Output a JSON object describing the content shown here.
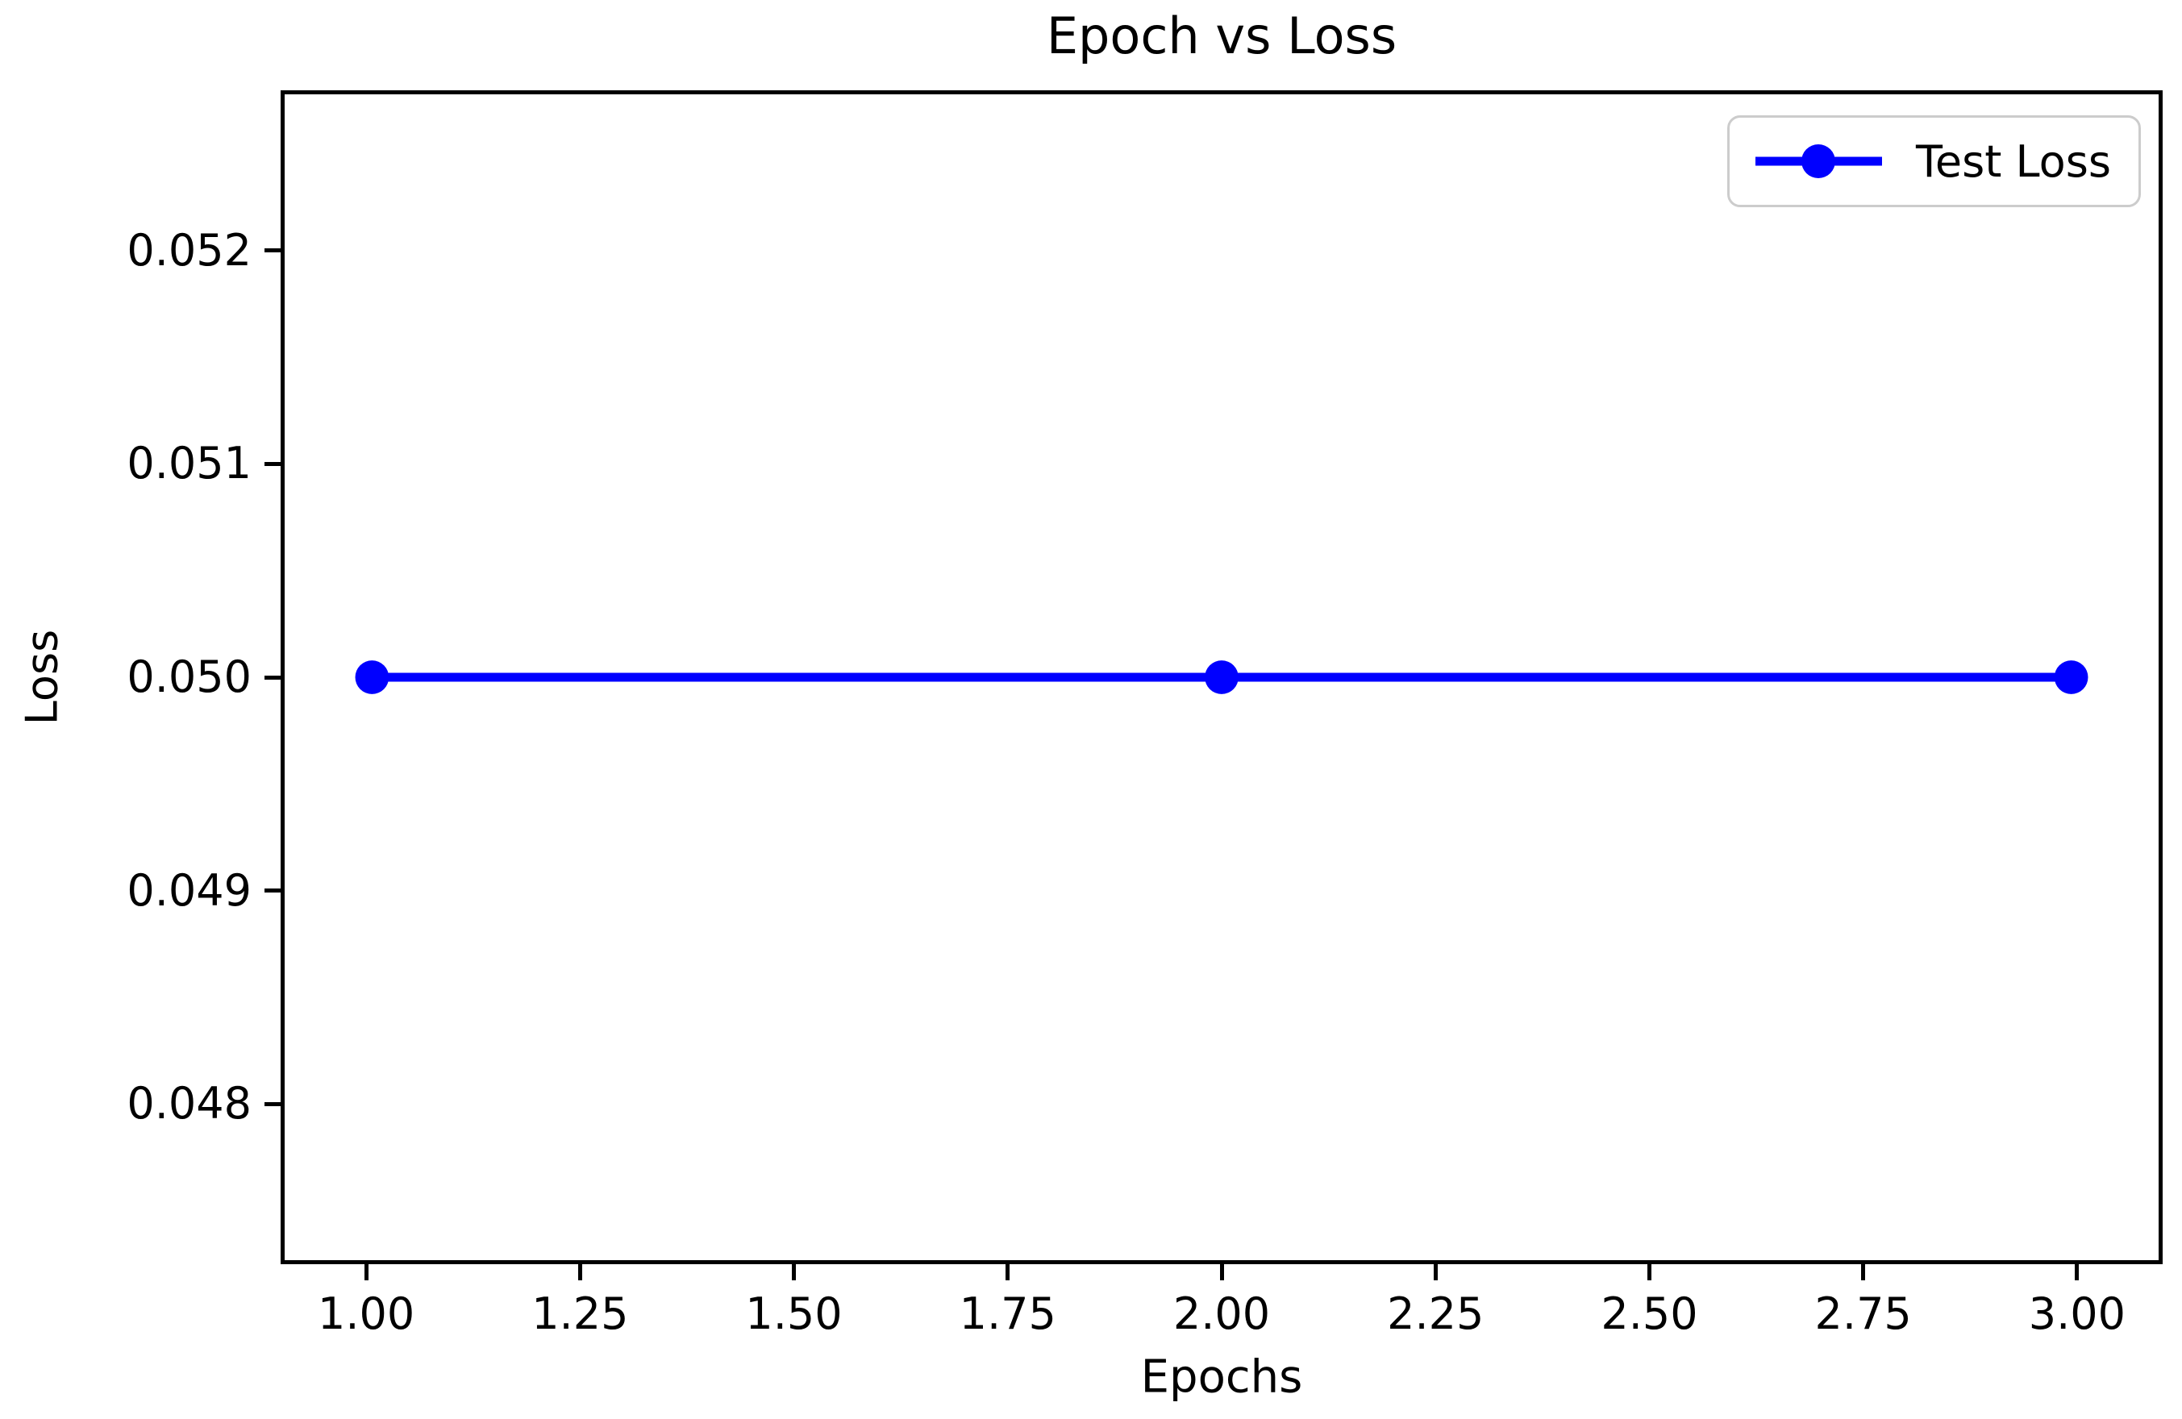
{
  "chart_data": {
    "type": "line",
    "title": "Epoch vs Loss",
    "xlabel": "Epochs",
    "ylabel": "Loss",
    "x": [
      1,
      2,
      3
    ],
    "series": [
      {
        "name": "Test Loss",
        "values": [
          0.05,
          0.05,
          0.05
        ],
        "color": "#0000ff",
        "marker": "circle",
        "line_width": 11,
        "marker_radius": 21
      }
    ],
    "xlim": [
      0.9,
      3.1
    ],
    "ylim": [
      0.04725,
      0.05275
    ],
    "x_ticks": [
      {
        "value": 1.0,
        "label": "1.00"
      },
      {
        "value": 1.25,
        "label": "1.25"
      },
      {
        "value": 1.5,
        "label": "1.50"
      },
      {
        "value": 1.75,
        "label": "1.75"
      },
      {
        "value": 2.0,
        "label": "2.00"
      },
      {
        "value": 2.25,
        "label": "2.25"
      },
      {
        "value": 2.5,
        "label": "2.50"
      },
      {
        "value": 2.75,
        "label": "2.75"
      },
      {
        "value": 3.0,
        "label": "3.00"
      }
    ],
    "y_ticks": [
      {
        "value": 0.048,
        "label": "0.048"
      },
      {
        "value": 0.049,
        "label": "0.049"
      },
      {
        "value": 0.05,
        "label": "0.050"
      },
      {
        "value": 0.051,
        "label": "0.051"
      },
      {
        "value": 0.052,
        "label": "0.052"
      }
    ],
    "grid": false,
    "legend": {
      "position": "upper right",
      "entries": [
        "Test Loss"
      ]
    },
    "colors": {
      "line": "#0000ff",
      "axis": "#000000",
      "text": "#000000",
      "legend_border": "#cccccc",
      "background": "#ffffff"
    }
  }
}
